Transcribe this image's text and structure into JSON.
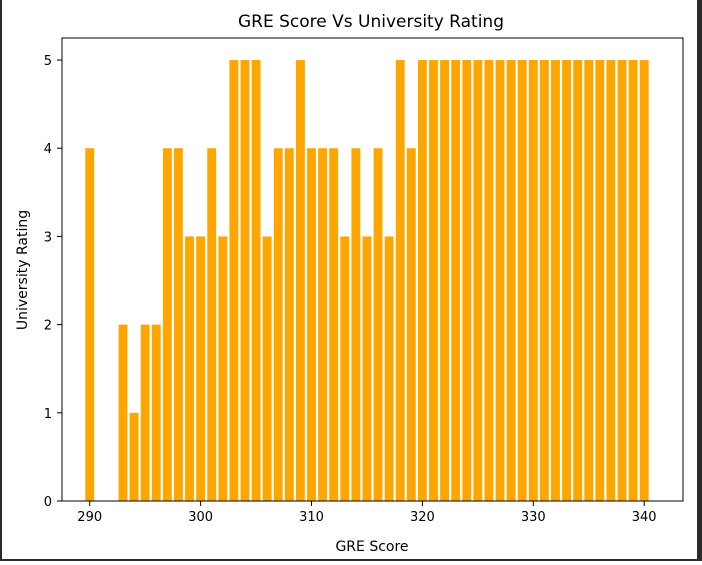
{
  "chart_data": {
    "type": "bar",
    "title": "GRE Score Vs University Rating",
    "xlabel": "GRE Score",
    "ylabel": "University Rating",
    "xlim": [
      287.5,
      343.5
    ],
    "ylim": [
      0,
      5.25
    ],
    "xticks": [
      290,
      300,
      310,
      320,
      330,
      340
    ],
    "yticks": [
      0,
      1,
      2,
      3,
      4,
      5
    ],
    "bar_color": "#ffa500",
    "grid": false,
    "x": [
      290,
      293,
      294,
      295,
      296,
      297,
      298,
      299,
      300,
      301,
      302,
      303,
      304,
      305,
      306,
      307,
      308,
      309,
      310,
      311,
      312,
      313,
      314,
      315,
      316,
      317,
      318,
      319,
      320,
      321,
      322,
      323,
      324,
      325,
      326,
      327,
      328,
      329,
      330,
      331,
      332,
      333,
      334,
      335,
      336,
      337,
      338,
      339,
      340
    ],
    "values": [
      4,
      2,
      1,
      2,
      2,
      4,
      4,
      3,
      3,
      4,
      3,
      5,
      5,
      5,
      3,
      4,
      4,
      5,
      4,
      4,
      4,
      3,
      4,
      3,
      4,
      3,
      5,
      4,
      5,
      5,
      5,
      5,
      5,
      5,
      5,
      5,
      5,
      5,
      5,
      5,
      5,
      5,
      5,
      5,
      5,
      5,
      5,
      5,
      5
    ]
  }
}
